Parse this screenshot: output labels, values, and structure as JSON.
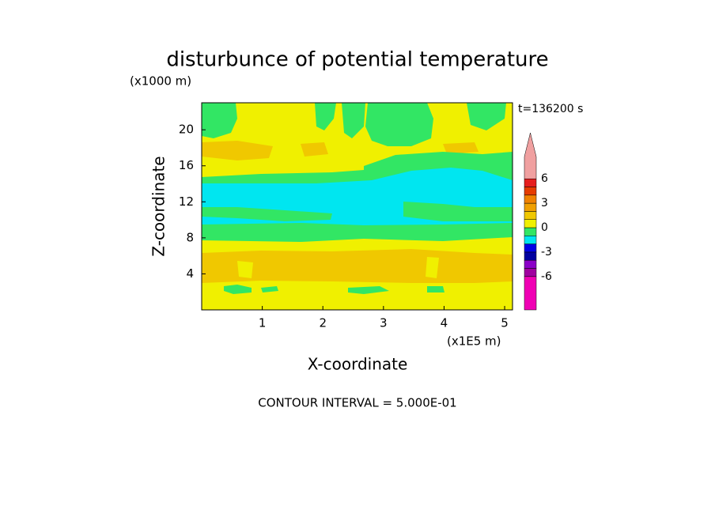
{
  "chart_data": {
    "type": "contour",
    "title": "disturbunce of potential temperature",
    "y_unit": "(x1000 m)",
    "time_label": "t=136200 s",
    "xlabel": "X-coordinate",
    "ylabel": "Z-coordinate",
    "x_unit": "(x1E5 m)",
    "footer": "CONTOUR INTERVAL = 5.000E-01",
    "xlim": [
      0,
      5.13
    ],
    "ylim": [
      0,
      23
    ],
    "xticks": [
      1,
      2,
      3,
      4,
      5
    ],
    "yticks": [
      4,
      8,
      12,
      16,
      20
    ],
    "colorbar": {
      "levels": [
        -6,
        -5,
        -4,
        -3,
        -2,
        -1,
        0,
        1,
        2,
        3,
        4,
        5,
        6
      ],
      "ticks": [
        -6,
        -3,
        0,
        3,
        6
      ],
      "colors": [
        "#f000b4",
        "#a000a0",
        "#8c00c8",
        "#0000a0",
        "#0000e6",
        "#00e6f0",
        "#32e664",
        "#f0f000",
        "#f0c800",
        "#f0a000",
        "#f08200",
        "#e63c00",
        "#e61e1e",
        "#f0a0a0"
      ]
    }
  }
}
